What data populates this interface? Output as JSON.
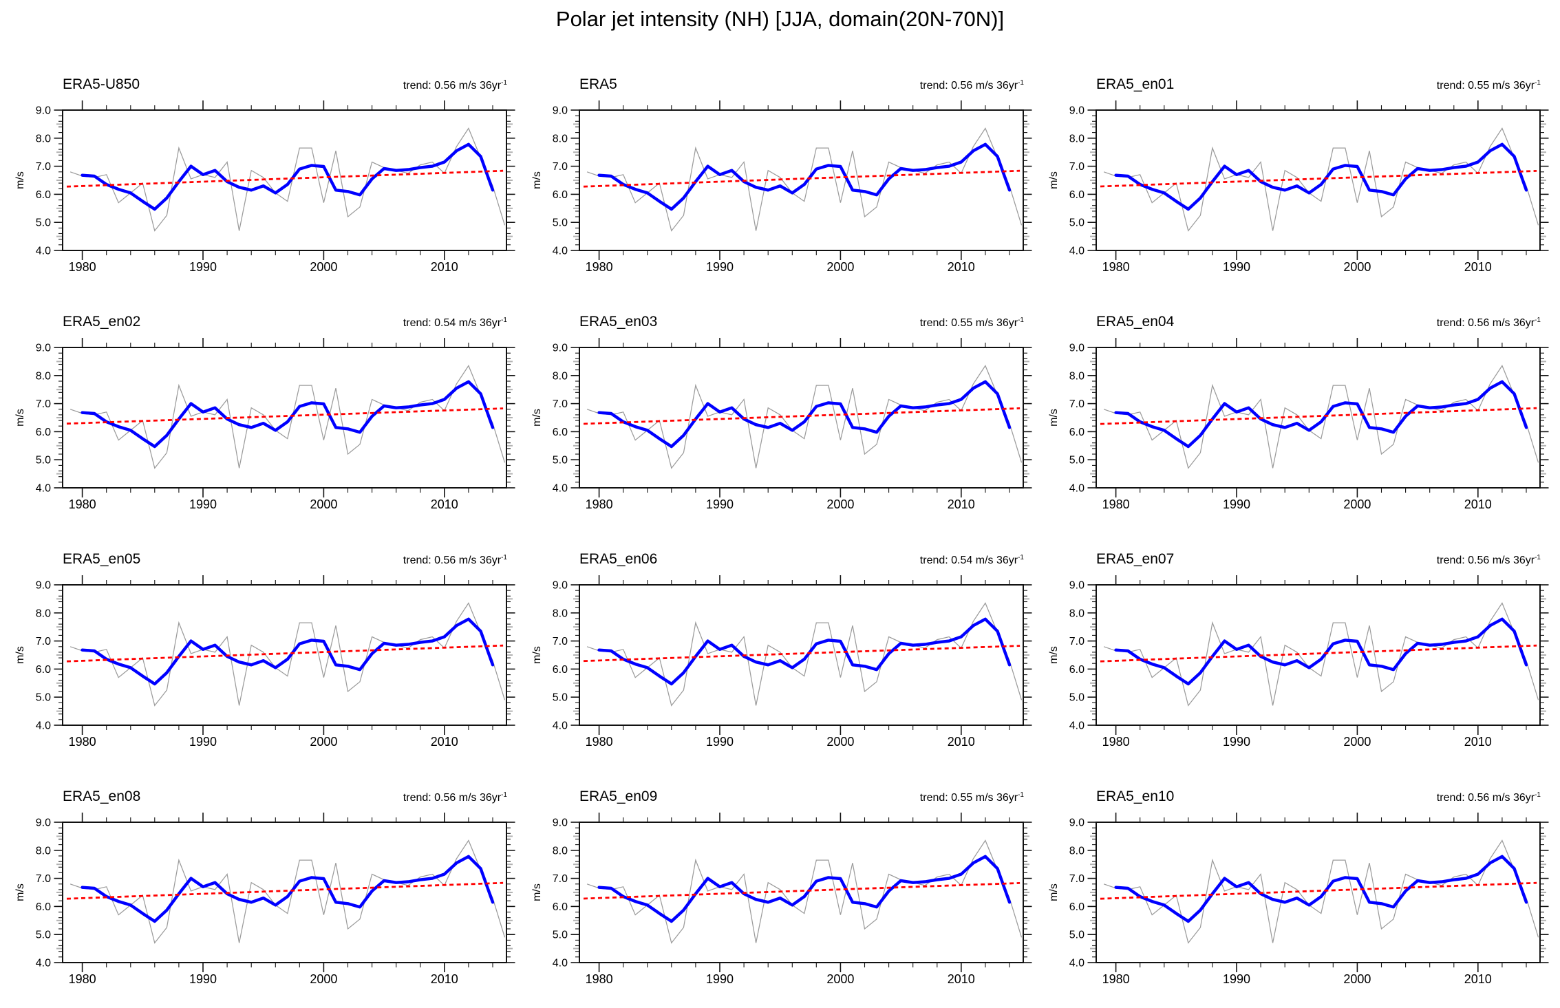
{
  "page": {
    "title": "Polar jet intensity (NH) [JJA, domain(20N-70N)]"
  },
  "trend_text": {
    "prefix": "trend: ",
    "suffix": " m/s 36yr",
    "superscript": "-1"
  },
  "axes": {
    "ylabel": "m/s",
    "y_major_labels": [
      "9.0",
      "8.0",
      "7.0",
      "6.0",
      "5.0",
      "4.0"
    ],
    "x_major_labels": [
      "1980",
      "1990",
      "2000",
      "2010"
    ]
  },
  "chart_data": {
    "type": "line",
    "title": "Polar jet intensity (NH) [JJA, domain(20N-70N)]",
    "xlabel": "",
    "ylabel": "m/s",
    "ylim": [
      4.0,
      9.0
    ],
    "xlim": [
      1978.37,
      2015.14
    ],
    "x_ticks_major": [
      1980,
      1990,
      2000,
      2010
    ],
    "x_ticks_minor_step_years": 2,
    "y_ticks_major": [
      9.0,
      8.0,
      7.0,
      6.0,
      5.0,
      4.0
    ],
    "y_ticks_minor_step": 0.2,
    "y_ticks_half_gray": [
      8.5,
      7.5,
      6.5,
      5.5,
      4.5
    ],
    "grid": false,
    "legend": "none",
    "colors": {
      "annual": "#9b9b9b",
      "smoothed": "#0000ff",
      "trend": "#ff0000",
      "frame": "#111111"
    },
    "years": [
      1979,
      1980,
      1981,
      1982,
      1983,
      1984,
      1985,
      1986,
      1987,
      1988,
      1989,
      1990,
      1991,
      1992,
      1993,
      1994,
      1995,
      1996,
      1997,
      1998,
      1999,
      2000,
      2001,
      2002,
      2003,
      2004,
      2005,
      2006,
      2007,
      2008,
      2009,
      2010,
      2011,
      2012,
      2013,
      2014,
      2015
    ],
    "series": [
      {
        "name": "annual mean (gray)",
        "color": "#9b9b9b",
        "start_year": 1979,
        "values": [
          6.8,
          6.65,
          6.6,
          6.7,
          5.7,
          6.05,
          6.4,
          4.7,
          5.25,
          7.65,
          6.55,
          6.7,
          6.6,
          7.15,
          4.7,
          6.85,
          6.6,
          6.05,
          5.75,
          7.65,
          7.65,
          5.7,
          7.55,
          5.2,
          5.55,
          7.15,
          6.95,
          6.85,
          6.75,
          7.05,
          7.15,
          6.75,
          7.7,
          8.35,
          7.3,
          6.3,
          4.9
        ]
      },
      {
        "name": "smoothed (blue)",
        "color": "#0000ff",
        "start_year": 1980,
        "values": [
          6.68,
          6.65,
          6.35,
          6.18,
          6.05,
          5.75,
          5.47,
          5.87,
          6.45,
          7.0,
          6.7,
          6.85,
          6.45,
          6.25,
          6.15,
          6.3,
          6.05,
          6.35,
          6.9,
          7.03,
          6.99,
          6.15,
          6.1,
          5.98,
          6.55,
          6.92,
          6.85,
          6.88,
          6.95,
          7.0,
          7.15,
          7.55,
          7.78,
          7.35,
          6.15
        ]
      }
    ],
    "trend_line": {
      "color": "#ff0000",
      "style": "dashed",
      "anchor_year": 1997,
      "anchor_value": 6.56,
      "slope_units": "m/s per 36yr"
    },
    "panels": [
      {
        "label": "ERA5-U850",
        "trend_value": "0.56"
      },
      {
        "label": "ERA5",
        "trend_value": "0.56"
      },
      {
        "label": "ERA5_en01",
        "trend_value": "0.55"
      },
      {
        "label": "ERA5_en02",
        "trend_value": "0.54"
      },
      {
        "label": "ERA5_en03",
        "trend_value": "0.55"
      },
      {
        "label": "ERA5_en04",
        "trend_value": "0.56"
      },
      {
        "label": "ERA5_en05",
        "trend_value": "0.56"
      },
      {
        "label": "ERA5_en06",
        "trend_value": "0.54"
      },
      {
        "label": "ERA5_en07",
        "trend_value": "0.56"
      },
      {
        "label": "ERA5_en08",
        "trend_value": "0.56"
      },
      {
        "label": "ERA5_en09",
        "trend_value": "0.55"
      },
      {
        "label": "ERA5_en10",
        "trend_value": "0.56"
      }
    ]
  }
}
